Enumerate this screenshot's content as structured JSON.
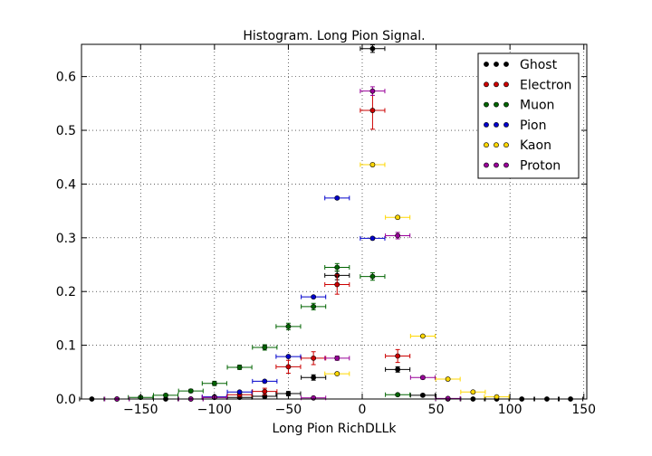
{
  "chart_data": {
    "type": "scatter",
    "title": "Histogram. Long Pion Signal.",
    "xlabel": "Long Pion RichDLLk",
    "ylabel": "",
    "xlim": [
      -190,
      152
    ],
    "ylim": [
      0.0,
      0.66
    ],
    "xticks": [
      -150,
      -100,
      -50,
      0,
      50,
      100,
      150
    ],
    "xtick_labels": [
      "−150",
      "−100",
      "−50",
      "0",
      "50",
      "100",
      "150"
    ],
    "yticks": [
      0.0,
      0.1,
      0.2,
      0.3,
      0.4,
      0.5,
      0.6
    ],
    "ytick_labels": [
      "0.0",
      "0.1",
      "0.2",
      "0.3",
      "0.4",
      "0.5",
      "0.6"
    ],
    "grid": true,
    "legend_position": "top-right",
    "bin_halfwidth": 8.3,
    "series": [
      {
        "name": "Ghost",
        "color": "#000000",
        "x": [
          -183,
          -166,
          -133,
          -116,
          -100,
          -83,
          -66,
          -50,
          -33,
          -17,
          7,
          24,
          41,
          58,
          75,
          91,
          108,
          125,
          141
        ],
        "y": [
          0.0,
          0.0,
          0.0,
          0.0,
          0.003,
          0.003,
          0.005,
          0.01,
          0.04,
          0.23,
          0.652,
          0.055,
          0.007,
          0.0,
          0.0,
          0.0,
          0.0,
          0.0,
          0.0
        ],
        "err": [
          0,
          0,
          0,
          0,
          0.002,
          0.002,
          0.003,
          0.004,
          0.005,
          0.008,
          0.007,
          0.005,
          0.002,
          0,
          0,
          0,
          0,
          0,
          0
        ]
      },
      {
        "name": "Electron",
        "color": "#cc0000",
        "x": [
          -83,
          -66,
          -50,
          -33,
          -17,
          7,
          24
        ],
        "y": [
          0.008,
          0.014,
          0.06,
          0.076,
          0.213,
          0.537,
          0.08
        ],
        "err": [
          0.004,
          0.006,
          0.012,
          0.012,
          0.018,
          0.035,
          0.012
        ]
      },
      {
        "name": "Muon",
        "color": "#006400",
        "x": [
          -150,
          -133,
          -116,
          -100,
          -83,
          -66,
          -50,
          -33,
          -17,
          7,
          24
        ],
        "y": [
          0.003,
          0.007,
          0.015,
          0.029,
          0.059,
          0.096,
          0.135,
          0.172,
          0.245,
          0.228,
          0.008
        ],
        "err": [
          0.002,
          0.002,
          0.003,
          0.004,
          0.004,
          0.005,
          0.006,
          0.006,
          0.007,
          0.007,
          0.002
        ]
      },
      {
        "name": "Pion",
        "color": "#0000cc",
        "x": [
          -100,
          -83,
          -66,
          -50,
          -33,
          -17,
          7
        ],
        "y": [
          0.004,
          0.013,
          0.033,
          0.079,
          0.19,
          0.374,
          0.299
        ],
        "err": [
          0.001,
          0.001,
          0.001,
          0.002,
          0.002,
          0.002,
          0.002
        ]
      },
      {
        "name": "Kaon",
        "color": "#ffd700",
        "x": [
          -17,
          7,
          24,
          41,
          58,
          75,
          91
        ],
        "y": [
          0.047,
          0.436,
          0.338,
          0.117,
          0.037,
          0.013,
          0.004
        ],
        "err": [
          0.002,
          0.003,
          0.003,
          0.002,
          0.002,
          0.001,
          0.001
        ]
      },
      {
        "name": "Proton",
        "color": "#990099",
        "x": [
          -166,
          -116,
          -100,
          -33,
          -17,
          7,
          24,
          41,
          58
        ],
        "y": [
          0.0,
          0.0,
          0.003,
          0.002,
          0.076,
          0.573,
          0.304,
          0.04,
          0.001
        ],
        "err": [
          0,
          0,
          0.001,
          0.001,
          0.004,
          0.008,
          0.006,
          0.003,
          0.001
        ]
      }
    ]
  }
}
